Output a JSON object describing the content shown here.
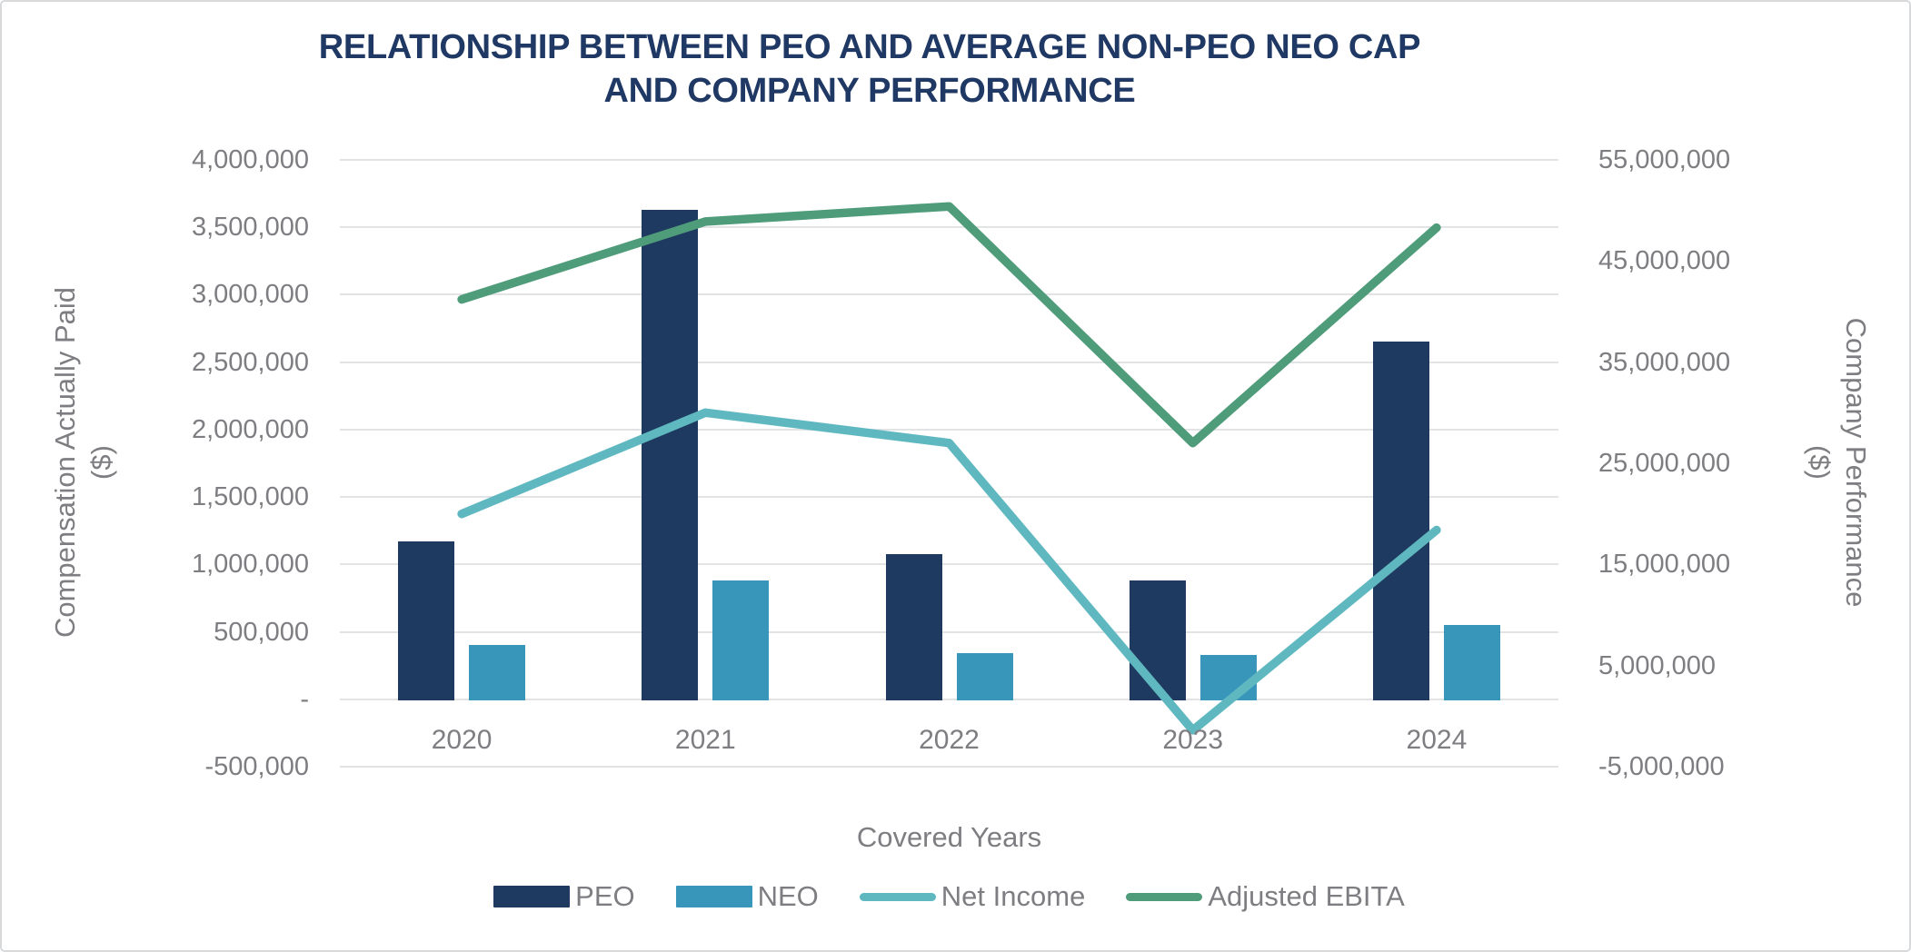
{
  "title": {
    "line1": "RELATIONSHIP BETWEEN PEO AND AVERAGE NON-PEO NEO CAP",
    "line2": "AND COMPANY PERFORMANCE",
    "color": "#1F3864"
  },
  "chart_data": {
    "type": "combo-bar-line",
    "categories": [
      "2020",
      "2021",
      "2022",
      "2023",
      "2024"
    ],
    "series": [
      {
        "name": "PEO",
        "type": "bar",
        "axis": "left",
        "color": "#1F3A60",
        "values": [
          1170000,
          3630000,
          1080000,
          880000,
          2650000
        ]
      },
      {
        "name": "NEO",
        "type": "bar",
        "axis": "left",
        "color": "#3996BB",
        "values": [
          400000,
          880000,
          340000,
          330000,
          550000
        ]
      },
      {
        "name": "Net Income",
        "type": "line",
        "axis": "right",
        "color": "#5FB8C0",
        "values": [
          20000000,
          30000000,
          27000000,
          -1400000,
          18400000
        ]
      },
      {
        "name": "Adjusted EBITA",
        "type": "line",
        "axis": "right",
        "color": "#4F9C7A",
        "values": [
          41200000,
          48900000,
          50400000,
          27000000,
          48300000
        ]
      }
    ],
    "xlabel": "Covered Years",
    "left_axis": {
      "label": "Compensation Actually Paid",
      "unit": "($)",
      "min": -500000,
      "max": 4000000,
      "tick_step": 500000,
      "ticks": [
        "4,000,000",
        "3,500,000",
        "3,000,000",
        "2,500,000",
        "2,000,000",
        "1,500,000",
        "1,000,000",
        "500,000",
        "-",
        "-500,000"
      ]
    },
    "right_axis": {
      "label": "Company Performance",
      "unit": "($)",
      "min": -5000000,
      "max": 55000000,
      "tick_step": 10000000,
      "ticks": [
        "55,000,000",
        "45,000,000",
        "35,000,000",
        "25,000,000",
        "15,000,000",
        "5,000,000",
        "-5,000,000"
      ]
    },
    "grid": true,
    "legend_position": "bottom",
    "gridline_color": "#E2E3E5",
    "axis_text_color": "#7E7E82"
  }
}
